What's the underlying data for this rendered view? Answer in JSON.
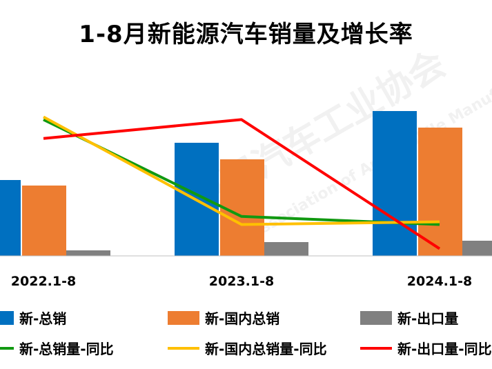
{
  "chart_data": {
    "type": "bar",
    "title": "1-8月新能源汽车销量及增长率",
    "categories": [
      "2022.1-8",
      "2023.1-8",
      "2024.1-8"
    ],
    "bar_series": [
      {
        "name": "新-总销",
        "color": "#0070C0",
        "values": [
          55,
          82,
          105
        ]
      },
      {
        "name": "新-国内总销",
        "color": "#ED7D31",
        "values": [
          51,
          70,
          93
        ]
      },
      {
        "name": "新-出口量",
        "color": "#808080",
        "values": [
          4,
          10,
          11
        ]
      }
    ],
    "line_series": [
      {
        "name": "新-总销量-同比",
        "color": "#119911",
        "values": [
          54,
          18,
          15
        ]
      },
      {
        "name": "新-国内总销量-同比",
        "color": "#FFC000",
        "values": [
          55,
          15,
          16
        ]
      },
      {
        "name": "新-出口量-同比",
        "color": "#FF0000",
        "values": [
          47,
          54,
          6
        ]
      }
    ],
    "legend_position": "bottom",
    "grid": false
  },
  "watermark": {
    "text_cn": "中国汽车工业协会",
    "text_en": "Association of Automobile Manufacturers"
  }
}
